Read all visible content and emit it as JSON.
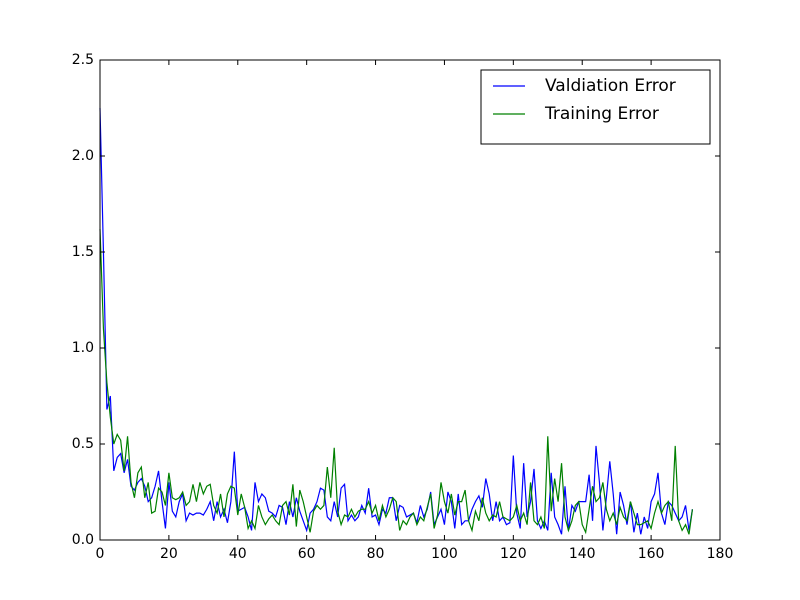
{
  "chart_data": {
    "type": "line",
    "x": [
      0,
      1,
      2,
      3,
      4,
      5,
      6,
      7,
      8,
      9,
      10,
      11,
      12,
      13,
      14,
      15,
      16,
      17,
      18,
      19,
      20,
      21,
      22,
      23,
      24,
      25,
      26,
      27,
      28,
      29,
      30,
      31,
      32,
      33,
      34,
      35,
      36,
      37,
      38,
      39,
      40,
      41,
      42,
      43,
      44,
      45,
      46,
      47,
      48,
      49,
      50,
      51,
      52,
      53,
      54,
      55,
      56,
      57,
      58,
      59,
      60,
      61,
      62,
      63,
      64,
      65,
      66,
      67,
      68,
      69,
      70,
      71,
      72,
      73,
      74,
      75,
      76,
      77,
      78,
      79,
      80,
      81,
      82,
      83,
      84,
      85,
      86,
      87,
      88,
      89,
      90,
      91,
      92,
      93,
      94,
      95,
      96,
      97,
      98,
      99,
      100,
      101,
      102,
      103,
      104,
      105,
      106,
      107,
      108,
      109,
      110,
      111,
      112,
      113,
      114,
      115,
      116,
      117,
      118,
      119,
      120,
      121,
      122,
      123,
      124,
      125,
      126,
      127,
      128,
      129,
      130,
      131,
      132,
      133,
      134,
      135,
      136,
      137,
      138,
      139,
      140,
      141,
      142,
      143,
      144,
      145,
      146,
      147,
      148,
      149,
      150,
      151,
      152,
      153,
      154,
      155,
      156,
      157,
      158,
      159,
      160,
      161,
      162,
      163,
      164,
      165,
      166,
      167,
      168,
      169,
      170,
      171,
      172
    ],
    "series": [
      {
        "name": "Valdiation Error",
        "color": "#0000ff",
        "values": [
          2.25,
          1.5,
          0.68,
          0.75,
          0.36,
          0.43,
          0.45,
          0.35,
          0.42,
          0.28,
          0.26,
          0.3,
          0.32,
          0.28,
          0.2,
          0.22,
          0.28,
          0.36,
          0.2,
          0.06,
          0.3,
          0.15,
          0.12,
          0.2,
          0.24,
          0.1,
          0.14,
          0.13,
          0.14,
          0.14,
          0.13,
          0.16,
          0.2,
          0.1,
          0.2,
          0.12,
          0.16,
          0.09,
          0.2,
          0.46,
          0.15,
          0.16,
          0.17,
          0.12,
          0.05,
          0.3,
          0.2,
          0.24,
          0.22,
          0.15,
          0.14,
          0.12,
          0.18,
          0.17,
          0.08,
          0.2,
          0.12,
          0.22,
          0.15,
          0.1,
          0.05,
          0.14,
          0.16,
          0.2,
          0.27,
          0.26,
          0.12,
          0.1,
          0.2,
          0.12,
          0.27,
          0.29,
          0.1,
          0.13,
          0.1,
          0.12,
          0.18,
          0.14,
          0.27,
          0.12,
          0.13,
          0.08,
          0.16,
          0.14,
          0.22,
          0.22,
          0.1,
          0.18,
          0.17,
          0.12,
          0.13,
          0.14,
          0.09,
          0.18,
          0.12,
          0.16,
          0.25,
          0.08,
          0.12,
          0.16,
          0.08,
          0.25,
          0.2,
          0.06,
          0.24,
          0.08,
          0.1,
          0.1,
          0.16,
          0.2,
          0.23,
          0.17,
          0.32,
          0.24,
          0.1,
          0.2,
          0.1,
          0.12,
          0.08,
          0.09,
          0.44,
          0.14,
          0.06,
          0.4,
          0.12,
          0.2,
          0.37,
          0.1,
          0.06,
          0.1,
          0.05,
          0.35,
          0.12,
          0.08,
          0.03,
          0.28,
          0.05,
          0.18,
          0.15,
          0.2,
          0.2,
          0.2,
          0.34,
          0.1,
          0.49,
          0.3,
          0.05,
          0.22,
          0.41,
          0.24,
          0.03,
          0.25,
          0.18,
          0.08,
          0.2,
          0.04,
          0.14,
          0.03,
          0.12,
          0.06,
          0.2,
          0.24,
          0.35,
          0.14,
          0.08,
          0.2,
          0.18,
          0.14,
          0.1,
          0.12,
          0.18,
          0.05,
          0.16
        ]
      },
      {
        "name": "Training Error",
        "color": "#008000",
        "values": [
          1.62,
          1.1,
          0.82,
          0.64,
          0.5,
          0.55,
          0.52,
          0.36,
          0.54,
          0.3,
          0.22,
          0.35,
          0.38,
          0.22,
          0.3,
          0.14,
          0.15,
          0.27,
          0.25,
          0.18,
          0.35,
          0.22,
          0.21,
          0.22,
          0.25,
          0.18,
          0.2,
          0.29,
          0.2,
          0.3,
          0.24,
          0.28,
          0.29,
          0.18,
          0.14,
          0.24,
          0.12,
          0.24,
          0.28,
          0.27,
          0.13,
          0.24,
          0.17,
          0.06,
          0.1,
          0.06,
          0.18,
          0.12,
          0.08,
          0.11,
          0.13,
          0.1,
          0.08,
          0.18,
          0.2,
          0.13,
          0.29,
          0.07,
          0.26,
          0.2,
          0.12,
          0.04,
          0.15,
          0.18,
          0.16,
          0.18,
          0.38,
          0.22,
          0.48,
          0.15,
          0.08,
          0.13,
          0.12,
          0.16,
          0.12,
          0.15,
          0.16,
          0.16,
          0.2,
          0.14,
          0.18,
          0.1,
          0.18,
          0.12,
          0.16,
          0.22,
          0.2,
          0.05,
          0.1,
          0.08,
          0.12,
          0.14,
          0.08,
          0.12,
          0.1,
          0.17,
          0.24,
          0.06,
          0.13,
          0.3,
          0.2,
          0.14,
          0.24,
          0.13,
          0.2,
          0.2,
          0.26,
          0.1,
          0.05,
          0.15,
          0.1,
          0.22,
          0.14,
          0.1,
          0.13,
          0.12,
          0.2,
          0.12,
          0.11,
          0.1,
          0.12,
          0.18,
          0.1,
          0.14,
          0.08,
          0.3,
          0.1,
          0.08,
          0.12,
          0.06,
          0.54,
          0.15,
          0.32,
          0.2,
          0.4,
          0.12,
          0.05,
          0.1,
          0.18,
          0.2,
          0.08,
          0.04,
          0.16,
          0.28,
          0.2,
          0.22,
          0.3,
          0.16,
          0.1,
          0.14,
          0.08,
          0.17,
          0.12,
          0.1,
          0.2,
          0.14,
          0.08,
          0.08,
          0.09,
          0.1,
          0.06,
          0.14,
          0.2,
          0.14,
          0.18,
          0.2,
          0.1,
          0.49,
          0.1,
          0.05,
          0.08,
          0.03,
          0.16
        ]
      }
    ],
    "xlim": [
      0,
      180
    ],
    "xticks": [
      0,
      20,
      40,
      60,
      80,
      100,
      120,
      140,
      160,
      180
    ],
    "ylim": [
      0,
      2.5
    ],
    "yticks": [
      {
        "value": 0,
        "label": "0.0"
      },
      0.5,
      {
        "value": 1,
        "label": "1.0"
      },
      1.5,
      {
        "value": 2,
        "label": "2.0"
      },
      2.5
    ],
    "grid": false,
    "legend": "upper right"
  }
}
